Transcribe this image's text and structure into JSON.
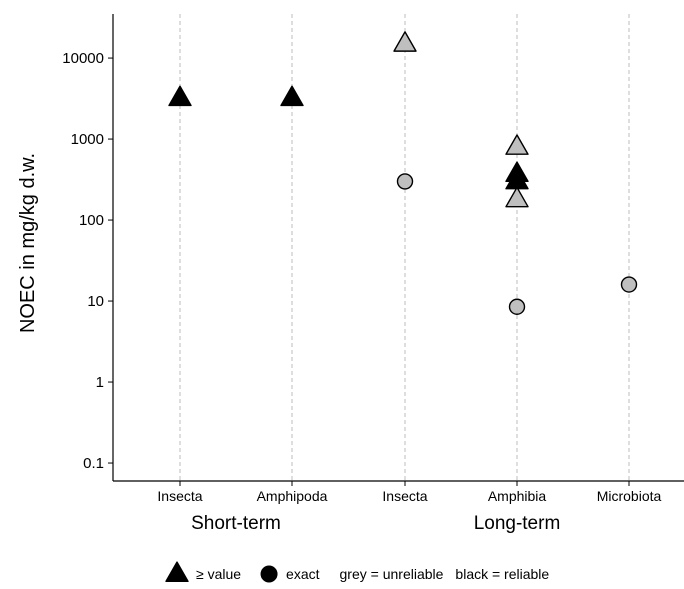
{
  "chart_data": {
    "type": "scatter",
    "ylabel": "NOEC in mg/kg d.w.",
    "y_scale": "log",
    "ylim": [
      0.06,
      35000
    ],
    "y_ticks": [
      0.1,
      1,
      10,
      100,
      1000,
      10000
    ],
    "y_tick_labels": [
      "0.1",
      "1",
      "10",
      "100",
      "1000",
      "10000"
    ],
    "grid": "vertical dashed lines at categories",
    "categories": [
      {
        "label": "Insecta",
        "group": "Short-term"
      },
      {
        "label": "Amphipoda",
        "group": "Short-term"
      },
      {
        "label": "Insecta",
        "group": "Long-term"
      },
      {
        "label": "Amphibia",
        "group": "Long-term"
      },
      {
        "label": "Microbiota",
        "group": "Long-term"
      }
    ],
    "groups": [
      "Short-term",
      "Long-term"
    ],
    "points": [
      {
        "category": 0,
        "y": 3200,
        "shape": "triangle",
        "color": "black"
      },
      {
        "category": 1,
        "y": 3200,
        "shape": "triangle",
        "color": "black"
      },
      {
        "category": 2,
        "y": 15000,
        "shape": "triangle",
        "color": "grey"
      },
      {
        "category": 2,
        "y": 300,
        "shape": "circle",
        "color": "grey"
      },
      {
        "category": 3,
        "y": 800,
        "shape": "triangle",
        "color": "grey"
      },
      {
        "category": 3,
        "y": 370,
        "shape": "triangle",
        "color": "black"
      },
      {
        "category": 3,
        "y": 300,
        "shape": "triangle",
        "color": "black"
      },
      {
        "category": 3,
        "y": 180,
        "shape": "triangle",
        "color": "grey"
      },
      {
        "category": 3,
        "y": 8.5,
        "shape": "circle",
        "color": "grey"
      },
      {
        "category": 4,
        "y": 16,
        "shape": "circle",
        "color": "grey"
      }
    ],
    "legend": {
      "placement": "bottom",
      "items": [
        {
          "shape": "triangle",
          "label": "≥ value"
        },
        {
          "shape": "circle",
          "label": "exact"
        },
        {
          "shape": "none",
          "label": "grey = unreliable"
        },
        {
          "shape": "none",
          "label": "black = reliable"
        }
      ]
    },
    "colors": {
      "black": "#000000",
      "grey": "#bfbfbf",
      "gridline": "#bdbdbd"
    }
  }
}
